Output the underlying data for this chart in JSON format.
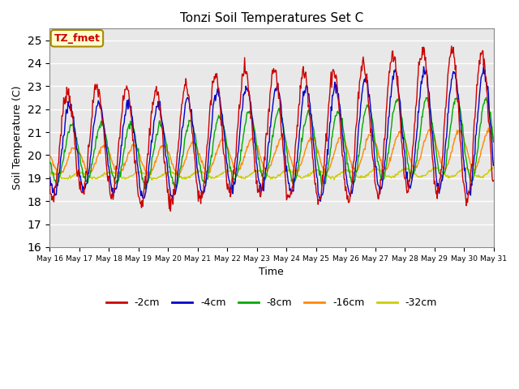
{
  "title": "Tonzi Soil Temperatures Set C",
  "xlabel": "Time",
  "ylabel": "Soil Temperature (C)",
  "ylim": [
    16.0,
    25.5
  ],
  "yticks": [
    16.0,
    17.0,
    18.0,
    19.0,
    20.0,
    21.0,
    22.0,
    23.0,
    24.0,
    25.0
  ],
  "colors": {
    "-2cm": "#cc0000",
    "-4cm": "#0000cc",
    "-8cm": "#00aa00",
    "-16cm": "#ff8800",
    "-32cm": "#cccc00"
  },
  "legend_labels": [
    "-2cm",
    "-4cm",
    "-8cm",
    "-16cm",
    "-32cm"
  ],
  "annotation_text": "TZ_fmet",
  "annotation_color": "#cc0000",
  "annotation_bg": "#ffffcc",
  "annotation_border": "#aa8800",
  "plot_bg": "#e8e8e8",
  "fig_bg": "#ffffff",
  "n_points": 720,
  "x_start": 16,
  "x_end": 31,
  "xtick_labels": [
    "May 16",
    "May 17",
    "May 18",
    "May 19",
    "May 20",
    "May 21",
    "May 22",
    "May 23",
    "May 24",
    "May 25",
    "May 26",
    "May 27",
    "May 28",
    "May 29",
    "May 30",
    "May 31"
  ],
  "xtick_positions": [
    16,
    17,
    18,
    19,
    20,
    21,
    22,
    23,
    24,
    25,
    26,
    27,
    28,
    29,
    30,
    31
  ]
}
